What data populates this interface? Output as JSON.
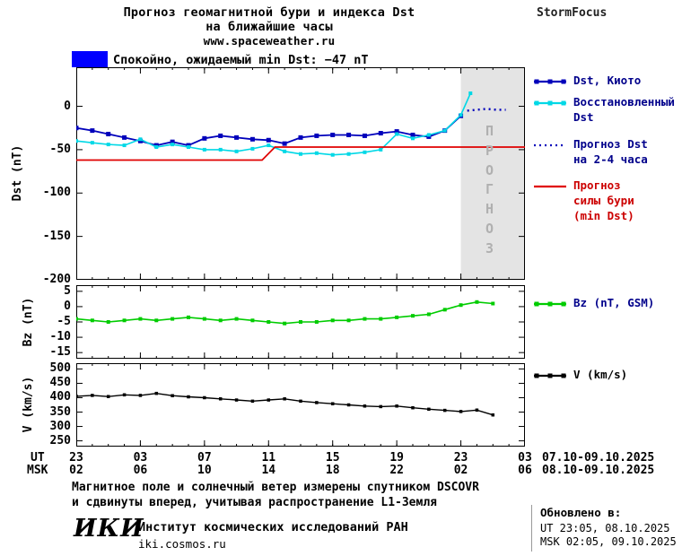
{
  "header": {
    "title_line1": "Прогноз геомагнитной бури и индекса Dst",
    "title_line2": "на ближайшие часы",
    "site": "www.spaceweather.ru",
    "brand": "StormFocus",
    "status_text": "Спокойно, ожидаемый min Dst: −47 nT",
    "status_color": "#0000ff"
  },
  "axes": {
    "dst_label": "Dst (nT)",
    "bz_label": "Bz (nT)",
    "v_label": "V (km/s)",
    "ut_label": "UT",
    "msk_label": "MSK",
    "ut_dates": "07.10-09.10.2025",
    "msk_dates": "08.10-09.10.2025"
  },
  "legend": {
    "dst_kyoto": "Dst, Киото",
    "dst_restored_1": "Восстановленный",
    "dst_restored_2": "Dst",
    "forecast_1": "Прогноз Dst",
    "forecast_2": "на 2-4 часа",
    "storm_1": "Прогноз",
    "storm_2": "силы бури",
    "storm_3": "(min Dst)",
    "bz": "Bz (nT, GSM)",
    "v": "V (km/s)"
  },
  "forecast_band_label": "ПРОГНОЗ",
  "footer": {
    "note_line1": "Магнитное поле и солнечный ветер измерены спутником DSCOVR",
    "note_line2": "и сдвинуты вперед, учитывая распространение L1-Земля",
    "logo": "ИКИ",
    "institute": "Институт космических исследований РАН",
    "site": "iki.cosmos.ru",
    "updated_label": "Обновлено в:",
    "updated_ut": "UT  23:05, 08.10.2025",
    "updated_msk": "MSK 02:05, 09.10.2025"
  },
  "x_axis": {
    "xlim": [
      0,
      28
    ],
    "ticks": [
      {
        "t": 0,
        "ut": "23",
        "msk": "02"
      },
      {
        "t": 4,
        "ut": "03",
        "msk": "06"
      },
      {
        "t": 8,
        "ut": "07",
        "msk": "10"
      },
      {
        "t": 12,
        "ut": "11",
        "msk": "14"
      },
      {
        "t": 16,
        "ut": "15",
        "msk": "18"
      },
      {
        "t": 20,
        "ut": "19",
        "msk": "22"
      },
      {
        "t": 24,
        "ut": "23",
        "msk": "02"
      },
      {
        "t": 28,
        "ut": "03",
        "msk": "06"
      }
    ]
  },
  "chart_data": [
    {
      "id": "dst",
      "type": "line",
      "title": "Dst (nT)",
      "ymin": -200,
      "ymax": 45,
      "yticks": [
        0,
        -50,
        -100,
        -150,
        -200
      ],
      "band": [
        24,
        28
      ],
      "band_color": "#e4e4e4",
      "series": [
        {
          "name": "Dst, Киото",
          "color": "#0000bb",
          "marker": true,
          "marker_size": 5,
          "width": 1.8,
          "points": [
            [
              0,
              -25
            ],
            [
              1,
              -28
            ],
            [
              2,
              -32
            ],
            [
              3,
              -36
            ],
            [
              4,
              -40
            ],
            [
              5,
              -45
            ],
            [
              6,
              -41
            ],
            [
              7,
              -45
            ],
            [
              8,
              -37
            ],
            [
              9,
              -34
            ],
            [
              10,
              -36
            ],
            [
              11,
              -38
            ],
            [
              12,
              -39
            ],
            [
              13,
              -43
            ],
            [
              14,
              -36
            ],
            [
              15,
              -34
            ],
            [
              16,
              -33
            ],
            [
              17,
              -33
            ],
            [
              18,
              -34
            ],
            [
              19,
              -31
            ],
            [
              20,
              -29
            ],
            [
              21,
              -33
            ],
            [
              22,
              -35
            ],
            [
              23,
              -28
            ],
            [
              24,
              -11
            ]
          ]
        },
        {
          "name": "Восстановленный Dst",
          "color": "#00d8e6",
          "marker": true,
          "marker_size": 4,
          "width": 1.6,
          "points": [
            [
              0,
              -40
            ],
            [
              1,
              -42
            ],
            [
              2,
              -44
            ],
            [
              3,
              -45
            ],
            [
              4,
              -38
            ],
            [
              5,
              -47
            ],
            [
              6,
              -44
            ],
            [
              7,
              -47
            ],
            [
              8,
              -50
            ],
            [
              9,
              -50
            ],
            [
              10,
              -52
            ],
            [
              11,
              -49
            ],
            [
              12,
              -45
            ],
            [
              13,
              -52
            ],
            [
              14,
              -55
            ],
            [
              15,
              -54
            ],
            [
              16,
              -56
            ],
            [
              17,
              -55
            ],
            [
              18,
              -53
            ],
            [
              19,
              -50
            ],
            [
              20,
              -32
            ],
            [
              21,
              -37
            ],
            [
              22,
              -33
            ],
            [
              23,
              -28
            ],
            [
              24,
              -10
            ],
            [
              24.6,
              15
            ]
          ]
        },
        {
          "name": "Прогноз Dst на 2-4 часа",
          "color": "#0000bb",
          "marker": false,
          "dash": "2,4",
          "width": 2.4,
          "points": [
            [
              24.4,
              -5
            ],
            [
              25,
              -4
            ],
            [
              25.6,
              -3
            ],
            [
              26.2,
              -4
            ],
            [
              26.8,
              -4
            ]
          ]
        },
        {
          "name": "Прогноз силы бури (min Dst)",
          "color": "#e00000",
          "marker": false,
          "width": 1.8,
          "points": [
            [
              0,
              -62
            ],
            [
              11.6,
              -62
            ],
            [
              12.4,
              -47
            ],
            [
              28,
              -47
            ]
          ]
        }
      ]
    },
    {
      "id": "bz",
      "type": "line",
      "title": "Bz (nT)",
      "ymin": -17,
      "ymax": 7,
      "yticks": [
        5,
        0,
        -5,
        -10,
        -15
      ],
      "series": [
        {
          "name": "Bz (nT, GSM)",
          "color": "#00cc00",
          "marker": true,
          "marker_size": 4,
          "width": 1.6,
          "points": [
            [
              0,
              -4
            ],
            [
              1,
              -4.5
            ],
            [
              2,
              -5
            ],
            [
              3,
              -4.5
            ],
            [
              4,
              -4
            ],
            [
              5,
              -4.5
            ],
            [
              6,
              -4
            ],
            [
              7,
              -3.5
            ],
            [
              8,
              -4
            ],
            [
              9,
              -4.5
            ],
            [
              10,
              -4
            ],
            [
              11,
              -4.5
            ],
            [
              12,
              -5
            ],
            [
              13,
              -5.5
            ],
            [
              14,
              -5
            ],
            [
              15,
              -5
            ],
            [
              16,
              -4.5
            ],
            [
              17,
              -4.5
            ],
            [
              18,
              -4
            ],
            [
              19,
              -4
            ],
            [
              20,
              -3.5
            ],
            [
              21,
              -3
            ],
            [
              22,
              -2.5
            ],
            [
              23,
              -1
            ],
            [
              24,
              0.5
            ],
            [
              25,
              1.5
            ],
            [
              26,
              1
            ]
          ]
        }
      ]
    },
    {
      "id": "v",
      "type": "line",
      "title": "V (km/s)",
      "ymin": 230,
      "ymax": 520,
      "yticks": [
        500,
        450,
        400,
        350,
        300,
        250
      ],
      "series": [
        {
          "name": "V (km/s)",
          "color": "#000000",
          "marker": true,
          "marker_size": 3.5,
          "width": 1.4,
          "points": [
            [
              0,
              405
            ],
            [
              1,
              408
            ],
            [
              2,
              404
            ],
            [
              3,
              410
            ],
            [
              4,
              408
            ],
            [
              5,
              415
            ],
            [
              6,
              407
            ],
            [
              7,
              403
            ],
            [
              8,
              400
            ],
            [
              9,
              396
            ],
            [
              10,
              392
            ],
            [
              11,
              388
            ],
            [
              12,
              392
            ],
            [
              13,
              396
            ],
            [
              14,
              388
            ],
            [
              15,
              383
            ],
            [
              16,
              379
            ],
            [
              17,
              375
            ],
            [
              18,
              371
            ],
            [
              19,
              369
            ],
            [
              20,
              371
            ],
            [
              21,
              365
            ],
            [
              22,
              360
            ],
            [
              23,
              356
            ],
            [
              24,
              352
            ],
            [
              25,
              357
            ],
            [
              26,
              340
            ]
          ]
        }
      ]
    }
  ]
}
